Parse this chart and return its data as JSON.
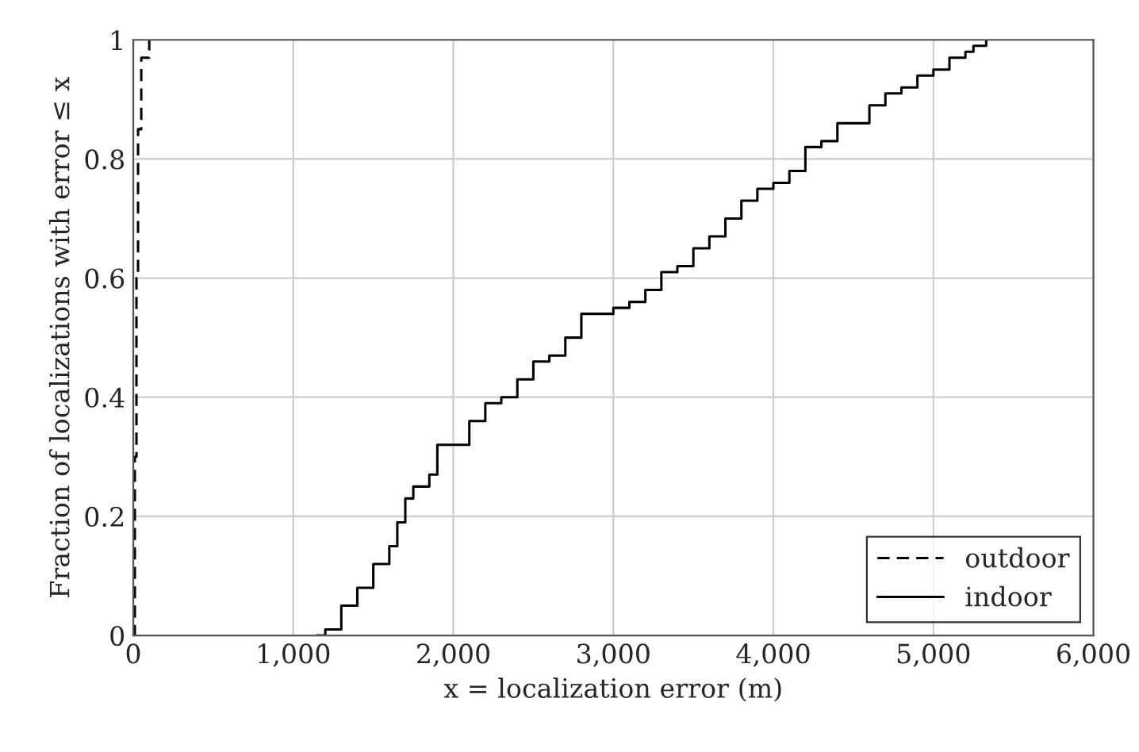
{
  "chart_data": {
    "type": "step",
    "xlabel": "x = localization error (m)",
    "ylabel": "Fraction of localizations with error ≤ x",
    "xlim": [
      0,
      6000
    ],
    "ylim": [
      0,
      1
    ],
    "xticks": [
      0,
      {
        "value": 1000,
        "label": "1,000"
      },
      {
        "value": 2000,
        "label": "2,000"
      },
      {
        "value": 3000,
        "label": "3,000"
      },
      {
        "value": 4000,
        "label": "4,000"
      },
      {
        "value": 5000,
        "label": "5,000"
      },
      {
        "value": 6000,
        "label": "6,000"
      }
    ],
    "yticks": [
      0,
      0.2,
      0.4,
      0.6,
      0.8,
      1
    ],
    "grid": true,
    "legend": "bottom right",
    "series": [
      {
        "name": "outdoor",
        "color": "#000000",
        "line_style": "dashed",
        "x": [
          0,
          10,
          20,
          30,
          50,
          100
        ],
        "values": [
          0,
          0.3,
          0.6,
          0.85,
          0.97,
          1.0
        ]
      },
      {
        "name": "indoor",
        "color": "#000000",
        "line_style": "solid",
        "x": [
          1150,
          1200,
          1300,
          1400,
          1500,
          1600,
          1650,
          1700,
          1750,
          1850,
          1900,
          2000,
          2100,
          2200,
          2300,
          2400,
          2500,
          2600,
          2700,
          2800,
          3000,
          3100,
          3200,
          3300,
          3400,
          3500,
          3600,
          3700,
          3800,
          3900,
          4000,
          4100,
          4200,
          4300,
          4400,
          4500,
          4600,
          4700,
          4800,
          4900,
          5000,
          5100,
          5200,
          5250,
          5330
        ],
        "values": [
          0,
          0.01,
          0.05,
          0.08,
          0.12,
          0.15,
          0.19,
          0.23,
          0.25,
          0.27,
          0.32,
          0.32,
          0.36,
          0.39,
          0.4,
          0.43,
          0.46,
          0.47,
          0.5,
          0.54,
          0.55,
          0.56,
          0.58,
          0.61,
          0.62,
          0.65,
          0.67,
          0.7,
          0.73,
          0.75,
          0.76,
          0.78,
          0.82,
          0.83,
          0.86,
          0.86,
          0.89,
          0.91,
          0.92,
          0.94,
          0.95,
          0.97,
          0.98,
          0.99,
          1.0
        ]
      }
    ]
  }
}
